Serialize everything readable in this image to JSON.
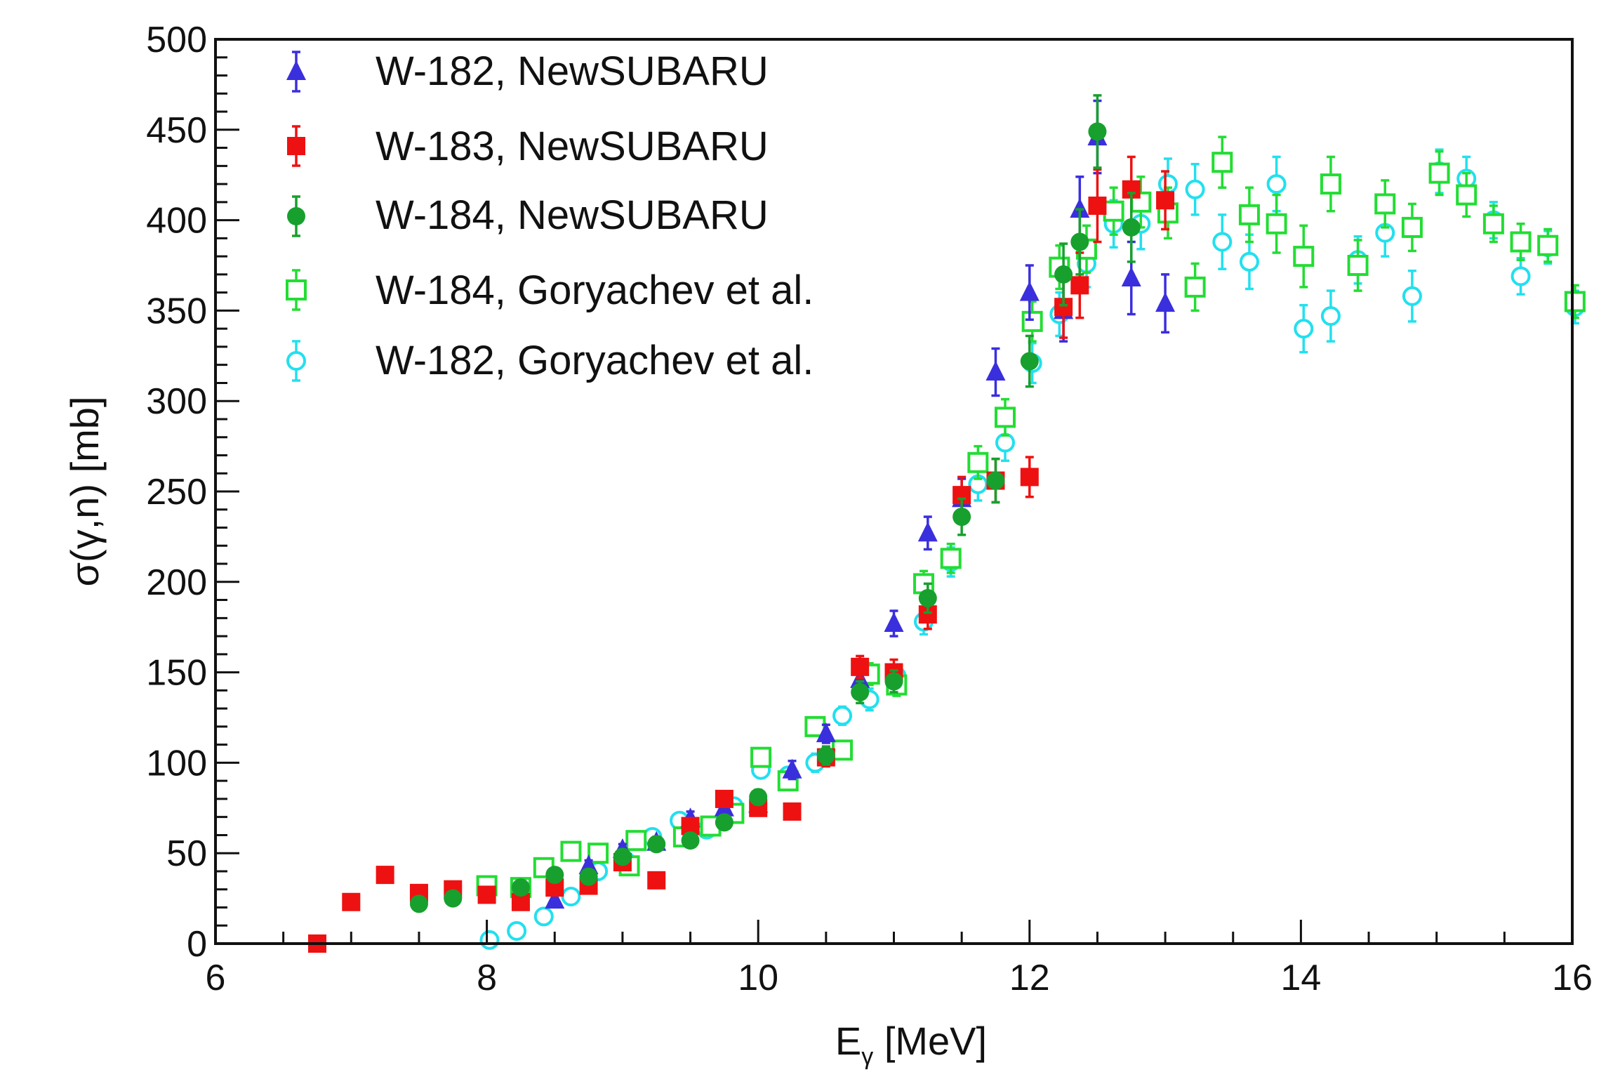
{
  "chart_data": {
    "type": "scatter",
    "xlabel_main": "E",
    "xlabel_sub": "γ",
    "xlabel_rest": " [MeV]",
    "ylabel": "σ(γ,n) [mb]",
    "xlim": [
      6,
      16
    ],
    "ylim": [
      0,
      500
    ],
    "x_ticks": [
      6,
      8,
      10,
      12,
      14,
      16
    ],
    "y_ticks": [
      0,
      50,
      100,
      150,
      200,
      250,
      300,
      350,
      400,
      450,
      500
    ],
    "legend_position": "top-left",
    "grid": false,
    "series": [
      {
        "name": "W-182, NewSUBARU",
        "marker": "triangle",
        "color": "#3a2fdd",
        "points": [
          [
            8.5,
            24,
            3
          ],
          [
            8.75,
            43,
            3
          ],
          [
            9.0,
            52,
            3
          ],
          [
            9.25,
            56,
            3
          ],
          [
            9.5,
            69,
            4
          ],
          [
            9.75,
            75,
            4
          ],
          [
            10.0,
            77,
            4
          ],
          [
            10.25,
            96,
            5
          ],
          [
            10.5,
            116,
            5
          ],
          [
            10.75,
            146,
            6
          ],
          [
            11.0,
            177,
            7
          ],
          [
            11.25,
            227,
            9
          ],
          [
            11.5,
            246,
            11
          ],
          [
            11.75,
            316,
            13
          ],
          [
            12.0,
            360,
            15
          ],
          [
            12.25,
            350,
            17
          ],
          [
            12.37,
            406,
            18
          ],
          [
            12.5,
            446,
            20
          ],
          [
            12.75,
            368,
            20
          ],
          [
            13.0,
            354,
            16
          ]
        ]
      },
      {
        "name": "W-183, NewSUBARU",
        "marker": "square-filled",
        "color": "#ee1111",
        "points": [
          [
            6.75,
            0,
            1
          ],
          [
            7.0,
            23,
            2
          ],
          [
            7.25,
            38,
            2
          ],
          [
            7.5,
            28,
            2
          ],
          [
            7.75,
            30,
            2
          ],
          [
            8.0,
            27,
            2
          ],
          [
            8.25,
            23,
            2
          ],
          [
            8.5,
            31,
            2
          ],
          [
            8.75,
            32,
            2
          ],
          [
            9.0,
            45,
            3
          ],
          [
            9.25,
            35,
            3
          ],
          [
            9.5,
            65,
            3
          ],
          [
            9.75,
            80,
            4
          ],
          [
            10.0,
            75,
            4
          ],
          [
            10.25,
            73,
            4
          ],
          [
            10.5,
            103,
            5
          ],
          [
            10.75,
            153,
            6
          ],
          [
            11.0,
            150,
            7
          ],
          [
            11.25,
            182,
            8
          ],
          [
            11.5,
            248,
            10
          ],
          [
            11.75,
            256,
            12
          ],
          [
            12.0,
            258,
            11
          ],
          [
            12.25,
            352,
            17
          ],
          [
            12.37,
            364,
            18
          ],
          [
            12.5,
            408,
            20
          ],
          [
            12.75,
            417,
            18
          ],
          [
            13.0,
            411,
            16
          ]
        ]
      },
      {
        "name": "W-184, NewSUBARU",
        "marker": "circle-filled",
        "color": "#17a02e",
        "points": [
          [
            7.5,
            22,
            2
          ],
          [
            7.75,
            25,
            2
          ],
          [
            8.25,
            31,
            2
          ],
          [
            8.5,
            38,
            2
          ],
          [
            8.75,
            37,
            2
          ],
          [
            9.0,
            48,
            3
          ],
          [
            9.25,
            55,
            3
          ],
          [
            9.5,
            57,
            3
          ],
          [
            9.75,
            67,
            3
          ],
          [
            10.0,
            81,
            4
          ],
          [
            10.5,
            104,
            5
          ],
          [
            10.75,
            139,
            6
          ],
          [
            11.0,
            145,
            6
          ],
          [
            11.25,
            191,
            8
          ],
          [
            11.5,
            236,
            10
          ],
          [
            11.75,
            256,
            12
          ],
          [
            12.0,
            322,
            14
          ],
          [
            12.25,
            370,
            17
          ],
          [
            12.37,
            388,
            18
          ],
          [
            12.5,
            449,
            20
          ],
          [
            12.75,
            396,
            19
          ]
        ]
      },
      {
        "name": "W-184, Goryachev et al.",
        "marker": "square-open",
        "color": "#22dd33",
        "points": [
          [
            8.0,
            32,
            3
          ],
          [
            8.25,
            31,
            3
          ],
          [
            8.42,
            42,
            3
          ],
          [
            8.62,
            51,
            3
          ],
          [
            8.82,
            50,
            3
          ],
          [
            9.05,
            43,
            3
          ],
          [
            9.1,
            57,
            3
          ],
          [
            9.45,
            59,
            3
          ],
          [
            9.65,
            65,
            3
          ],
          [
            9.82,
            72,
            4
          ],
          [
            10.02,
            103,
            4
          ],
          [
            10.22,
            90,
            4
          ],
          [
            10.42,
            120,
            5
          ],
          [
            10.62,
            107,
            5
          ],
          [
            10.82,
            149,
            6
          ],
          [
            11.02,
            143,
            6
          ],
          [
            11.22,
            199,
            7
          ],
          [
            11.42,
            213,
            8
          ],
          [
            11.62,
            266,
            9
          ],
          [
            11.82,
            291,
            10
          ],
          [
            12.02,
            344,
            11
          ],
          [
            12.22,
            374,
            12
          ],
          [
            12.42,
            384,
            13
          ],
          [
            12.62,
            405,
            13
          ],
          [
            12.82,
            410,
            14
          ],
          [
            13.02,
            404,
            14
          ],
          [
            13.22,
            363,
            13
          ],
          [
            13.42,
            432,
            14
          ],
          [
            13.62,
            403,
            15
          ],
          [
            13.82,
            398,
            16
          ],
          [
            14.02,
            380,
            17
          ],
          [
            14.22,
            420,
            15
          ],
          [
            14.42,
            375,
            14
          ],
          [
            14.62,
            409,
            13
          ],
          [
            14.82,
            396,
            13
          ],
          [
            15.02,
            426,
            12
          ],
          [
            15.22,
            414,
            12
          ],
          [
            15.42,
            398,
            10
          ],
          [
            15.62,
            388,
            10
          ],
          [
            15.82,
            386,
            9
          ],
          [
            16.02,
            355,
            9
          ]
        ]
      },
      {
        "name": "W-182, Goryachev et al.",
        "marker": "circle-open",
        "color": "#22e0ee",
        "points": [
          [
            8.02,
            2,
            2
          ],
          [
            8.22,
            7,
            2
          ],
          [
            8.42,
            15,
            2
          ],
          [
            8.62,
            26,
            3
          ],
          [
            8.82,
            40,
            3
          ],
          [
            9.02,
            46,
            3
          ],
          [
            9.22,
            59,
            3
          ],
          [
            9.42,
            68,
            3
          ],
          [
            9.62,
            63,
            3
          ],
          [
            9.82,
            76,
            4
          ],
          [
            10.02,
            96,
            4
          ],
          [
            10.22,
            93,
            4
          ],
          [
            10.42,
            100,
            5
          ],
          [
            10.62,
            126,
            5
          ],
          [
            10.82,
            135,
            6
          ],
          [
            11.02,
            148,
            6
          ],
          [
            11.22,
            178,
            7
          ],
          [
            11.42,
            211,
            8
          ],
          [
            11.62,
            254,
            9
          ],
          [
            11.82,
            277,
            10
          ],
          [
            12.02,
            321,
            11
          ],
          [
            12.22,
            348,
            12
          ],
          [
            12.42,
            376,
            13
          ],
          [
            12.62,
            398,
            13
          ],
          [
            12.82,
            398,
            14
          ],
          [
            13.02,
            420,
            14
          ],
          [
            13.22,
            417,
            14
          ],
          [
            13.42,
            388,
            15
          ],
          [
            13.62,
            377,
            15
          ],
          [
            13.82,
            420,
            15
          ],
          [
            14.02,
            340,
            13
          ],
          [
            14.22,
            347,
            14
          ],
          [
            14.42,
            378,
            13
          ],
          [
            14.62,
            393,
            13
          ],
          [
            14.82,
            358,
            14
          ],
          [
            15.02,
            427,
            12
          ],
          [
            15.22,
            423,
            12
          ],
          [
            15.42,
            400,
            10
          ],
          [
            15.62,
            369,
            10
          ],
          [
            15.82,
            385,
            9
          ],
          [
            16.02,
            352,
            9
          ]
        ]
      }
    ]
  }
}
